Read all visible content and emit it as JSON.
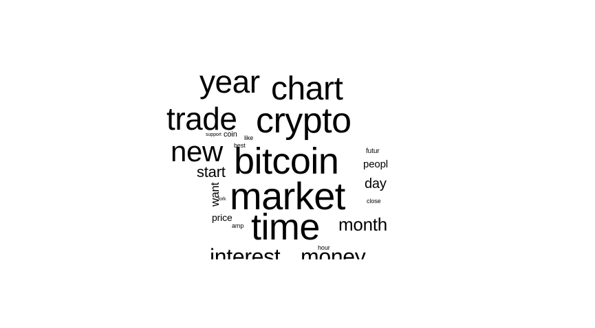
{
  "cloud": {
    "words": {
      "market": "market",
      "bitcoin": "bitcoin",
      "time": "time",
      "crypto": "crypto",
      "chart": "chart",
      "year": "year",
      "trade": "trade",
      "new": "new",
      "interest": "interest",
      "money": "money",
      "month": "month",
      "start": "start",
      "day": "day",
      "peopl": "peopl",
      "want": "want",
      "price": "price",
      "coin": "coin",
      "futur": "futur",
      "close": "close",
      "best": "best",
      "like": "like",
      "amp": "amp",
      "hour": "hour",
      "support": "support",
      "fork": "fork"
    },
    "text_color": "#000000",
    "background_color": "#ffffff"
  }
}
